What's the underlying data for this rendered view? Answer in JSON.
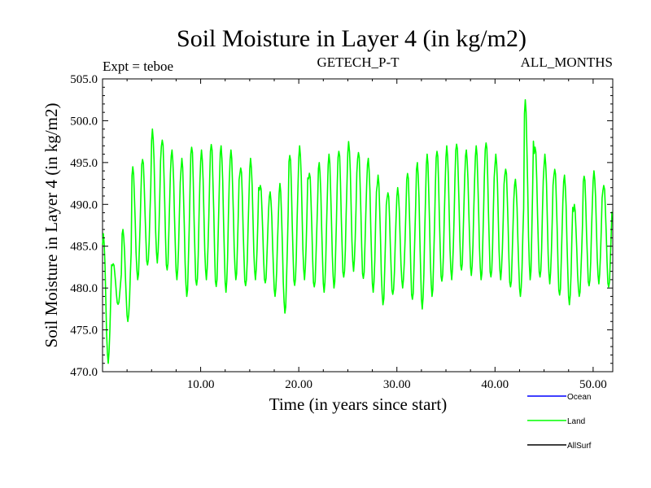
{
  "chart_data": {
    "type": "line",
    "title": "Soil Moisture in Layer 4 (in kg/m2)",
    "subtitle_left": "Expt = teboe",
    "subtitle_center": "GETECH_P-T",
    "subtitle_right": "ALL_MONTHS",
    "xlabel": "Time (in years since start)",
    "ylabel": "Soil Moisture in Layer 4 (in kg/m2)",
    "xlim": [
      0,
      52
    ],
    "ylim": [
      470,
      505
    ],
    "x_ticks": [
      10,
      20,
      30,
      40,
      50
    ],
    "x_tick_labels": [
      "10.00",
      "20.00",
      "30.00",
      "40.00",
      "50.00"
    ],
    "y_ticks": [
      470,
      475,
      480,
      485,
      490,
      495,
      500,
      505
    ],
    "y_tick_labels": [
      "470.0",
      "475.0",
      "480.0",
      "485.0",
      "490.0",
      "495.0",
      "500.0",
      "505.0"
    ],
    "legend": [
      {
        "name": "Ocean",
        "color": "#0000ff"
      },
      {
        "name": "Land",
        "color": "#00ff00"
      },
      {
        "name": "AllSurf",
        "color": "#000000"
      }
    ],
    "series": [
      {
        "name": "Land",
        "color": "#00ff00",
        "annual_max": [
          486.5,
          483.0,
          487.0,
          494.5,
          495.5,
          499.0,
          498.0,
          496.5,
          495.5,
          497.0,
          496.5,
          497.5,
          497.0,
          496.5,
          494.5,
          495.5,
          492.5,
          491.5,
          492.5,
          496.0,
          497.0,
          494.0,
          495.0,
          496.0,
          496.5,
          497.5,
          496.5,
          495.5,
          493.5,
          491.5,
          492.0,
          494.0,
          495.0,
          496.0,
          496.5,
          497.0,
          497.5,
          496.5,
          497.0,
          497.5,
          496.0,
          494.5,
          493.0,
          502.5,
          497.0,
          496.0,
          494.5,
          493.5,
          490.0,
          493.5,
          494.0,
          492.5
        ],
        "annual_min": [
          471.0,
          478.0,
          476.0,
          481.0,
          482.5,
          483.0,
          482.0,
          481.0,
          479.0,
          480.0,
          481.0,
          480.0,
          479.5,
          481.0,
          480.0,
          481.0,
          480.5,
          479.0,
          477.0,
          480.0,
          481.0,
          480.0,
          479.5,
          480.0,
          481.0,
          482.0,
          481.0,
          479.5,
          478.0,
          479.0,
          480.0,
          478.5,
          477.5,
          479.0,
          480.5,
          481.0,
          482.0,
          481.5,
          481.0,
          481.0,
          481.0,
          480.0,
          479.0,
          481.0,
          481.0,
          480.5,
          479.0,
          478.0,
          479.0,
          480.0,
          480.5,
          480.0
        ]
      }
    ]
  }
}
